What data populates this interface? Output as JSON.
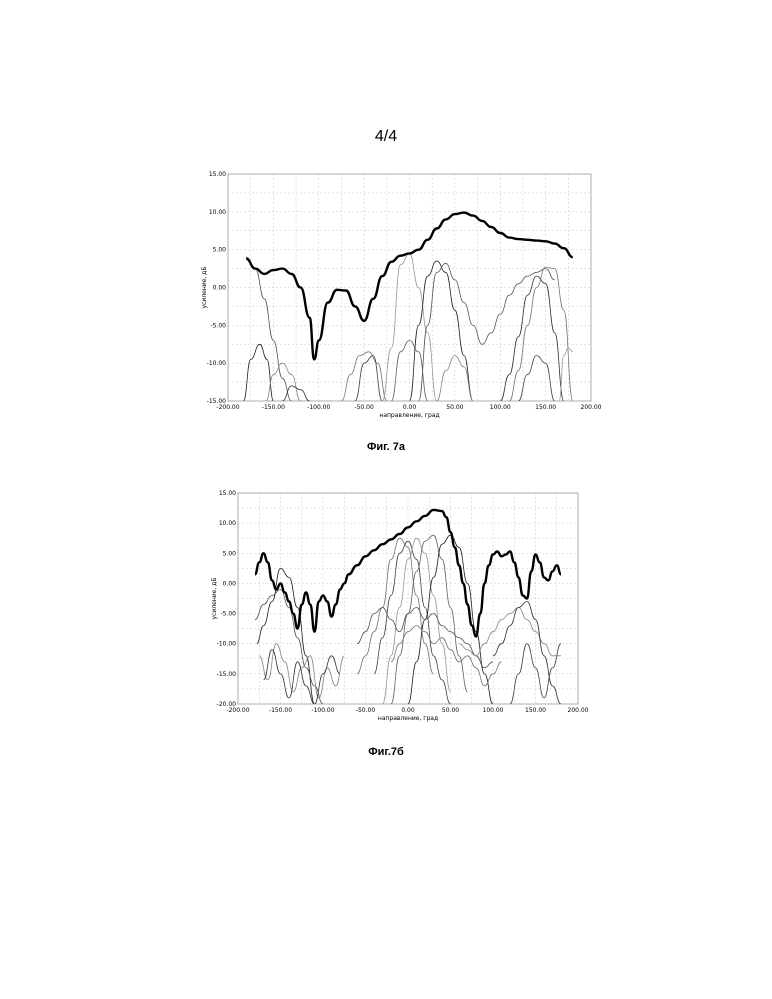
{
  "page": {
    "number": "4/4"
  },
  "figures": [
    {
      "caption": "Фиг. 7а"
    },
    {
      "caption": "Фиг.7б"
    }
  ],
  "chart_data": [
    {
      "type": "line",
      "title": "",
      "xlabel": "направление, град",
      "ylabel": "усиление, дБ",
      "xlim": [
        -200,
        200
      ],
      "ylim": [
        -15,
        15
      ],
      "grid": true,
      "x_ticks": [
        "-200.00",
        "-150.00",
        "-100.00",
        "-50.00",
        "0.00",
        "50.00",
        "100.00",
        "150.00",
        "200.00"
      ],
      "y_ticks": [
        "15.00",
        "10.00",
        "5.00",
        "0.00",
        "-5.00",
        "-10.00",
        "-15.00"
      ],
      "series": [
        {
          "style": "envelope",
          "x": [
            -180,
            -170,
            -160,
            -150,
            -140,
            -130,
            -120,
            -110,
            -105,
            -100,
            -90,
            -80,
            -70,
            -60,
            -50,
            -40,
            -30,
            -20,
            -10,
            0,
            10,
            20,
            30,
            40,
            50,
            60,
            70,
            80,
            90,
            100,
            110,
            120,
            130,
            140,
            150,
            160,
            170,
            180
          ],
          "y": [
            3.8,
            2.5,
            1.8,
            2.3,
            2.5,
            1.8,
            0.0,
            -4.0,
            -9.5,
            -7.0,
            -2.0,
            -0.3,
            -0.4,
            -2.5,
            -4.4,
            -1.5,
            1.5,
            3.4,
            4.2,
            4.5,
            5.0,
            6.3,
            7.8,
            9.0,
            9.7,
            9.9,
            9.5,
            8.8,
            8.0,
            7.2,
            6.6,
            6.4,
            6.3,
            6.2,
            6.1,
            5.8,
            5.2,
            4.0
          ]
        },
        {
          "style": "beam",
          "x": [
            -183,
            -175,
            -165,
            -157,
            -150
          ],
          "y": [
            -15,
            -9.5,
            -7.5,
            -9.5,
            -15
          ]
        },
        {
          "style": "beam",
          "x": [
            -180,
            -170,
            -160,
            -150,
            -140,
            -130
          ],
          "y": [
            4.0,
            2.5,
            -1.5,
            -7.0,
            -12.0,
            -15
          ]
        },
        {
          "style": "beam",
          "x": [
            -158,
            -150,
            -140,
            -130,
            -120
          ],
          "y": [
            -15,
            -11.5,
            -10.0,
            -11.5,
            -15
          ]
        },
        {
          "style": "beam",
          "x": [
            -140,
            -130,
            -120,
            -110
          ],
          "y": [
            -15,
            -13.0,
            -13.5,
            -15
          ]
        },
        {
          "style": "beam",
          "x": [
            -75,
            -65,
            -55,
            -45,
            -35,
            -25
          ],
          "y": [
            -15,
            -11.5,
            -9.0,
            -8.5,
            -10.0,
            -15
          ]
        },
        {
          "style": "beam",
          "x": [
            -60,
            -50,
            -40,
            -30
          ],
          "y": [
            -15,
            -10.0,
            -9.0,
            -15
          ]
        },
        {
          "style": "beam",
          "x": [
            -30,
            -20,
            -10,
            0,
            10,
            20,
            30
          ],
          "y": [
            -15,
            -8.0,
            3.0,
            4.5,
            0.0,
            -6.0,
            -15
          ]
        },
        {
          "style": "beam",
          "x": [
            -20,
            -10,
            0,
            10,
            20
          ],
          "y": [
            -15,
            -8.5,
            -7.0,
            -8.5,
            -15
          ]
        },
        {
          "style": "beam",
          "x": [
            0,
            10,
            20,
            30,
            40,
            50,
            60,
            70
          ],
          "y": [
            -15,
            -5.0,
            1.5,
            3.5,
            2.0,
            -3.0,
            -9.0,
            -15
          ]
        },
        {
          "style": "beam",
          "x": [
            10,
            20,
            30,
            40,
            50,
            60,
            70,
            80,
            90,
            100,
            110,
            120,
            130,
            140,
            150,
            160
          ],
          "y": [
            -15,
            -5.0,
            2.0,
            3.2,
            1.0,
            -2.0,
            -5.0,
            -7.5,
            -6.0,
            -3.5,
            -1.0,
            0.5,
            1.5,
            2.0,
            2.5,
            1.0
          ]
        },
        {
          "style": "beam",
          "x": [
            30,
            40,
            50,
            60,
            70
          ],
          "y": [
            -15,
            -11.0,
            -9.0,
            -10.5,
            -15
          ]
        },
        {
          "style": "beam",
          "x": [
            100,
            110,
            120,
            130,
            140,
            150,
            160,
            170
          ],
          "y": [
            -15,
            -11.5,
            -6.5,
            -1.0,
            1.5,
            0.5,
            -6.0,
            -15
          ]
        },
        {
          "style": "beam",
          "x": [
            110,
            120,
            130,
            140,
            150,
            160,
            170,
            180
          ],
          "y": [
            -15,
            -11.0,
            -5.0,
            0.0,
            2.7,
            2.5,
            -3.0,
            -15
          ]
        },
        {
          "style": "beam",
          "x": [
            120,
            130,
            140,
            150,
            160
          ],
          "y": [
            -15,
            -11.5,
            -9.0,
            -10.0,
            -15
          ]
        },
        {
          "style": "beam",
          "x": [
            165,
            170,
            175,
            180
          ],
          "y": [
            -15,
            -9.0,
            -8.0,
            -8.5
          ]
        }
      ]
    },
    {
      "type": "line",
      "title": "",
      "xlabel": "направление, град",
      "ylabel": "усиление, дБ",
      "xlim": [
        -200,
        200
      ],
      "ylim": [
        -20,
        15
      ],
      "grid": true,
      "x_ticks": [
        "-200.00",
        "-150.00",
        "-100.00",
        "-50.00",
        "0.00",
        "50.00",
        "100.00",
        "150.00",
        "200.00"
      ],
      "y_ticks": [
        "15.00",
        "10.00",
        "5.00",
        "0.00",
        "-5.00",
        "-10.00",
        "-15.00",
        "-20.00"
      ],
      "series": [
        {
          "style": "envelope",
          "x": [
            -180,
            -175,
            -170,
            -165,
            -160,
            -155,
            -150,
            -145,
            -140,
            -135,
            -130,
            -125,
            -120,
            -115,
            -110,
            -105,
            -100,
            -95,
            -90,
            -85,
            -80,
            -75,
            -70,
            -60,
            -50,
            -40,
            -30,
            -20,
            -10,
            0,
            10,
            20,
            30,
            40,
            45,
            50,
            55,
            60,
            65,
            70,
            75,
            80,
            85,
            90,
            95,
            100,
            105,
            110,
            115,
            120,
            125,
            130,
            135,
            140,
            145,
            150,
            155,
            160,
            165,
            170,
            175,
            180
          ],
          "y": [
            1.5,
            3.5,
            5.0,
            3.5,
            0.5,
            -1.0,
            0.0,
            -1.5,
            -3.0,
            -5.0,
            -7.5,
            -3.5,
            -1.5,
            -3.5,
            -8.0,
            -3.0,
            -2.0,
            -3.0,
            -5.5,
            -3.5,
            -1.0,
            0.0,
            1.5,
            3.0,
            4.5,
            5.5,
            6.5,
            7.3,
            8.2,
            9.3,
            10.3,
            11.2,
            12.2,
            12.0,
            11.0,
            8.5,
            6.0,
            3.0,
            0.0,
            -3.5,
            -7.0,
            -8.8,
            -5.0,
            0.0,
            3.0,
            4.8,
            5.3,
            4.5,
            4.8,
            5.3,
            3.5,
            1.0,
            -2.0,
            -2.5,
            2.0,
            4.8,
            3.5,
            1.0,
            0.5,
            2.0,
            3.0,
            1.5
          ]
        },
        {
          "style": "beam",
          "x": [
            -178,
            -170,
            -160,
            -150,
            -140,
            -130,
            -120,
            -110
          ],
          "y": [
            -10.0,
            -7.0,
            -3.0,
            2.5,
            1.0,
            -4.0,
            -12.0,
            -20.0
          ]
        },
        {
          "style": "beam",
          "x": [
            -180,
            -170,
            -160,
            -150,
            -140,
            -130,
            -120,
            -110,
            -100
          ],
          "y": [
            -6.0,
            -3.5,
            -2.0,
            -1.0,
            -4.0,
            -9.0,
            -14.0,
            -17.0,
            -20.0
          ]
        },
        {
          "style": "beam",
          "x": [
            -175,
            -165,
            -155,
            -145,
            -135,
            -125,
            -115,
            -105,
            -95,
            -85,
            -75
          ],
          "y": [
            -12.0,
            -16.0,
            -10.0,
            -13.0,
            -18.0,
            -14.0,
            -12.0,
            -19.0,
            -14.0,
            -17.0,
            -12.0
          ]
        },
        {
          "style": "beam",
          "x": [
            -170,
            -160,
            -150,
            -140,
            -130,
            -120,
            -110,
            -100,
            -90,
            -80
          ],
          "y": [
            -16.0,
            -11.0,
            -15.0,
            -19.0,
            -13.0,
            -17.0,
            -20.0,
            -15.0,
            -12.0,
            -15.0
          ]
        },
        {
          "style": "beam",
          "x": [
            -60,
            -50,
            -40,
            -30,
            -20,
            -10,
            0,
            10,
            20,
            30
          ],
          "y": [
            -15.0,
            -12.0,
            -8.0,
            -4.0,
            4.0,
            7.5,
            6.0,
            -2.0,
            -10.0,
            -15.0
          ]
        },
        {
          "style": "beam",
          "x": [
            -40,
            -30,
            -20,
            -10,
            0,
            10,
            20,
            30,
            40,
            50
          ],
          "y": [
            -15.0,
            -9.0,
            -2.0,
            5.0,
            7.0,
            4.0,
            -4.0,
            -12.0,
            -16.0,
            -20.0
          ]
        },
        {
          "style": "beam",
          "x": [
            -30,
            -20,
            -10,
            0,
            10,
            20,
            30,
            40,
            50
          ],
          "y": [
            -20.0,
            -12.0,
            -4.0,
            4.0,
            7.5,
            5.0,
            -2.0,
            -10.0,
            -18.0
          ]
        },
        {
          "style": "beam",
          "x": [
            -20,
            -10,
            0,
            10,
            20,
            30,
            40,
            50,
            60,
            70
          ],
          "y": [
            -20.0,
            -12.0,
            -5.0,
            2.0,
            7.0,
            8.0,
            4.0,
            -4.0,
            -12.0,
            -18.0
          ]
        },
        {
          "style": "beam",
          "x": [
            0,
            10,
            20,
            30,
            40,
            50,
            60,
            70,
            80,
            90,
            100
          ],
          "y": [
            -20.0,
            -13.0,
            -6.0,
            1.0,
            6.5,
            8.0,
            6.0,
            0.0,
            -8.0,
            -15.0,
            -20.0
          ]
        },
        {
          "style": "beam",
          "x": [
            -60,
            -50,
            -40,
            -30,
            -20,
            -10,
            0,
            10,
            20,
            30,
            40,
            50,
            60,
            70,
            80,
            90,
            100
          ],
          "y": [
            -10.0,
            -8.0,
            -5.0,
            -4.0,
            -6.0,
            -8.0,
            -5.0,
            -4.0,
            -6.0,
            -5.0,
            -7.0,
            -8.0,
            -9.0,
            -10.0,
            -12.0,
            -14.0,
            -13.0
          ]
        },
        {
          "style": "beam",
          "x": [
            60,
            70,
            80,
            90,
            100,
            110,
            120,
            130,
            140,
            150,
            160,
            170,
            180
          ],
          "y": [
            -10.0,
            -11.0,
            -12.0,
            -10.0,
            -8.0,
            -6.0,
            -5.0,
            -4.0,
            -6.0,
            -8.0,
            -10.0,
            -12.0,
            -12.0
          ]
        },
        {
          "style": "beam",
          "x": [
            100,
            110,
            120,
            130,
            140,
            150,
            160,
            170,
            180
          ],
          "y": [
            -12.0,
            -10.0,
            -7.0,
            -4.0,
            -3.0,
            -6.0,
            -12.0,
            -17.0,
            -20.0
          ]
        },
        {
          "style": "beam",
          "x": [
            -20,
            -10,
            0,
            10,
            20,
            30,
            40,
            50,
            60,
            70,
            80,
            90,
            100,
            110
          ],
          "y": [
            -13.0,
            -10.0,
            -8.0,
            -7.0,
            -8.0,
            -10.0,
            -9.0,
            -11.0,
            -13.0,
            -12.0,
            -14.0,
            -17.0,
            -15.0,
            -13.0
          ]
        },
        {
          "style": "beam",
          "x": [
            120,
            130,
            140,
            150,
            160,
            170,
            180
          ],
          "y": [
            -20.0,
            -15.0,
            -10.0,
            -14.0,
            -19.0,
            -14.0,
            -10.0
          ]
        }
      ]
    }
  ]
}
